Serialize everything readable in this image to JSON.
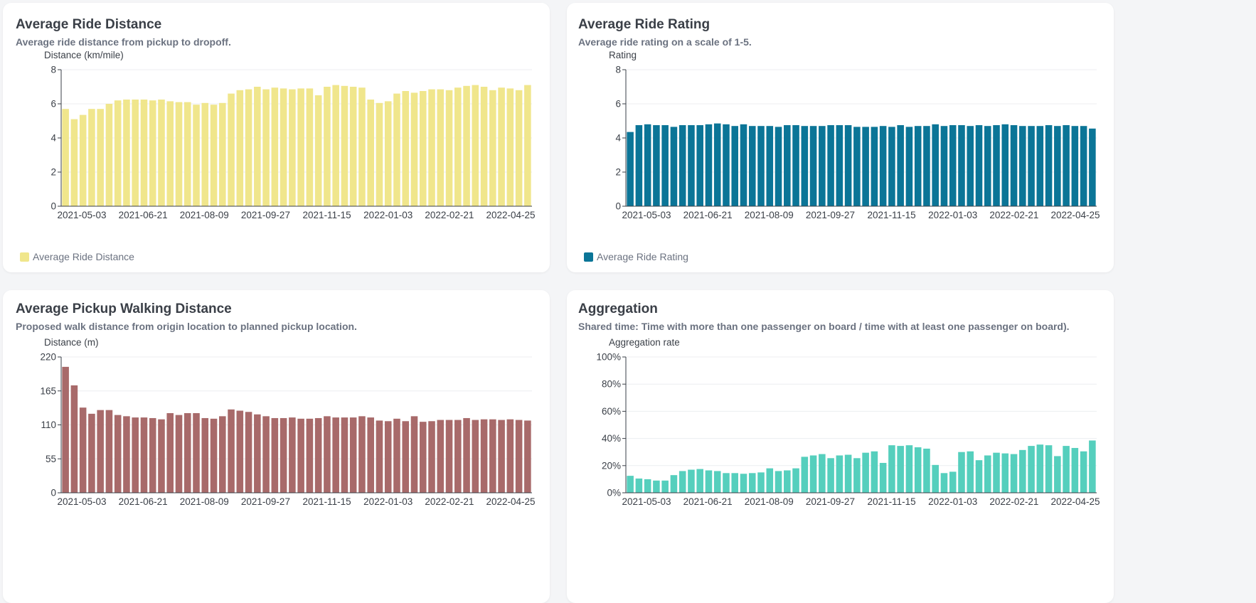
{
  "cards": [
    {
      "title": "Average Ride Distance",
      "subtitle": "Average ride distance from pickup to dropoff.",
      "legend": "Average Ride Distance",
      "color": "#f0e68c"
    },
    {
      "title": "Average Ride Rating",
      "subtitle": "Average ride rating on a scale of 1-5.",
      "legend": "Average Ride Rating",
      "color": "#0b7597"
    },
    {
      "title": "Average Pickup Walking Distance",
      "subtitle": "Proposed walk distance from origin location to planned pickup location.",
      "color": "#a86a6a"
    },
    {
      "title": "Aggregation",
      "subtitle": "Shared time: Time with more than one passenger on board / time with at least one passenger on board).",
      "color": "#55cfbd"
    }
  ],
  "chart_data": [
    {
      "type": "bar",
      "ylabel": "Distance (km/mile)",
      "ylim": [
        0,
        8
      ],
      "yticks": [
        "0",
        "2",
        "4",
        "6",
        "8"
      ],
      "xticks": [
        "2021-05-03",
        "2021-06-21",
        "2021-08-09",
        "2021-09-27",
        "2021-11-15",
        "2022-01-03",
        "2022-02-21",
        "2022-04-25"
      ],
      "grid": true,
      "legend_position": "bottom-left",
      "series": [
        {
          "name": "Average Ride Distance",
          "color": "#f0e68c",
          "values": [
            5.7,
            5.1,
            5.35,
            5.7,
            5.7,
            6.0,
            6.2,
            6.25,
            6.25,
            6.25,
            6.2,
            6.25,
            6.15,
            6.1,
            6.1,
            5.95,
            6.05,
            5.95,
            6.05,
            6.6,
            6.8,
            6.85,
            7.0,
            6.85,
            6.95,
            6.9,
            6.85,
            6.9,
            6.9,
            6.5,
            7.0,
            7.1,
            7.05,
            7.0,
            6.95,
            6.25,
            6.05,
            6.15,
            6.6,
            6.75,
            6.65,
            6.75,
            6.85,
            6.85,
            6.8,
            6.95,
            7.05,
            7.1,
            7.0,
            6.8,
            6.95,
            6.9,
            6.8,
            7.1
          ]
        }
      ]
    },
    {
      "type": "bar",
      "ylabel": "Rating",
      "ylim": [
        0,
        8
      ],
      "yticks": [
        "0",
        "2",
        "4",
        "6",
        "8"
      ],
      "xticks": [
        "2021-05-03",
        "2021-06-21",
        "2021-08-09",
        "2021-09-27",
        "2021-11-15",
        "2022-01-03",
        "2022-02-21",
        "2022-04-25"
      ],
      "grid": true,
      "legend_position": "bottom-left",
      "series": [
        {
          "name": "Average Ride Rating",
          "color": "#0b7597",
          "values": [
            4.35,
            4.75,
            4.8,
            4.75,
            4.75,
            4.65,
            4.75,
            4.75,
            4.75,
            4.8,
            4.85,
            4.8,
            4.7,
            4.8,
            4.7,
            4.7,
            4.7,
            4.65,
            4.75,
            4.75,
            4.7,
            4.7,
            4.7,
            4.75,
            4.75,
            4.75,
            4.65,
            4.65,
            4.65,
            4.7,
            4.65,
            4.75,
            4.65,
            4.7,
            4.7,
            4.8,
            4.7,
            4.75,
            4.75,
            4.7,
            4.75,
            4.7,
            4.75,
            4.8,
            4.75,
            4.7,
            4.7,
            4.7,
            4.75,
            4.7,
            4.75,
            4.7,
            4.7,
            4.55
          ]
        }
      ]
    },
    {
      "type": "bar",
      "ylabel": "Distance (m)",
      "ylim": [
        0,
        220
      ],
      "yticks": [
        "0",
        "55",
        "110",
        "165",
        "220"
      ],
      "xticks": [
        "2021-05-03",
        "2021-06-21",
        "2021-08-09",
        "2021-09-27",
        "2021-11-15",
        "2022-01-03",
        "2022-02-21",
        "2022-04-25"
      ],
      "grid": true,
      "series": [
        {
          "name": "Average Pickup Walking Distance",
          "color": "#a86a6a",
          "values": [
            204,
            174,
            138,
            128,
            134,
            134,
            126,
            124,
            122,
            122,
            121,
            119,
            129,
            126,
            129,
            129,
            121,
            120,
            124,
            135,
            133,
            131,
            127,
            124,
            121,
            121,
            122,
            120,
            120,
            121,
            124,
            122,
            122,
            122,
            124,
            122,
            117,
            116,
            120,
            116,
            124,
            115,
            116,
            118,
            118,
            118,
            121,
            118,
            119,
            119,
            118,
            119,
            118,
            117
          ]
        }
      ]
    },
    {
      "type": "bar",
      "ylabel": "Aggregation rate",
      "ylim": [
        0,
        100
      ],
      "yticks": [
        "0%",
        "20%",
        "40%",
        "60%",
        "80%",
        "100%"
      ],
      "xticks": [
        "2021-05-03",
        "2021-06-21",
        "2021-08-09",
        "2021-09-27",
        "2021-11-15",
        "2022-01-03",
        "2022-02-21",
        "2022-04-25"
      ],
      "grid": true,
      "series": [
        {
          "name": "Aggregation",
          "color": "#55cfbd",
          "values": [
            12.5,
            10.5,
            10.0,
            9.0,
            9.0,
            13.0,
            16.0,
            17.0,
            17.5,
            16.5,
            16.0,
            14.5,
            14.5,
            14.0,
            14.5,
            15.0,
            18.0,
            16.0,
            16.5,
            18.0,
            26.5,
            27.5,
            28.5,
            25.5,
            27.5,
            28.0,
            25.5,
            29.5,
            30.5,
            22.0,
            35.0,
            34.5,
            35.0,
            33.5,
            32.5,
            20.5,
            14.5,
            15.5,
            30.0,
            30.5,
            24.0,
            27.5,
            29.5,
            29.0,
            28.5,
            31.5,
            34.5,
            35.5,
            35.0,
            27.0,
            34.5,
            33.0,
            30.5,
            38.5
          ]
        }
      ]
    }
  ]
}
